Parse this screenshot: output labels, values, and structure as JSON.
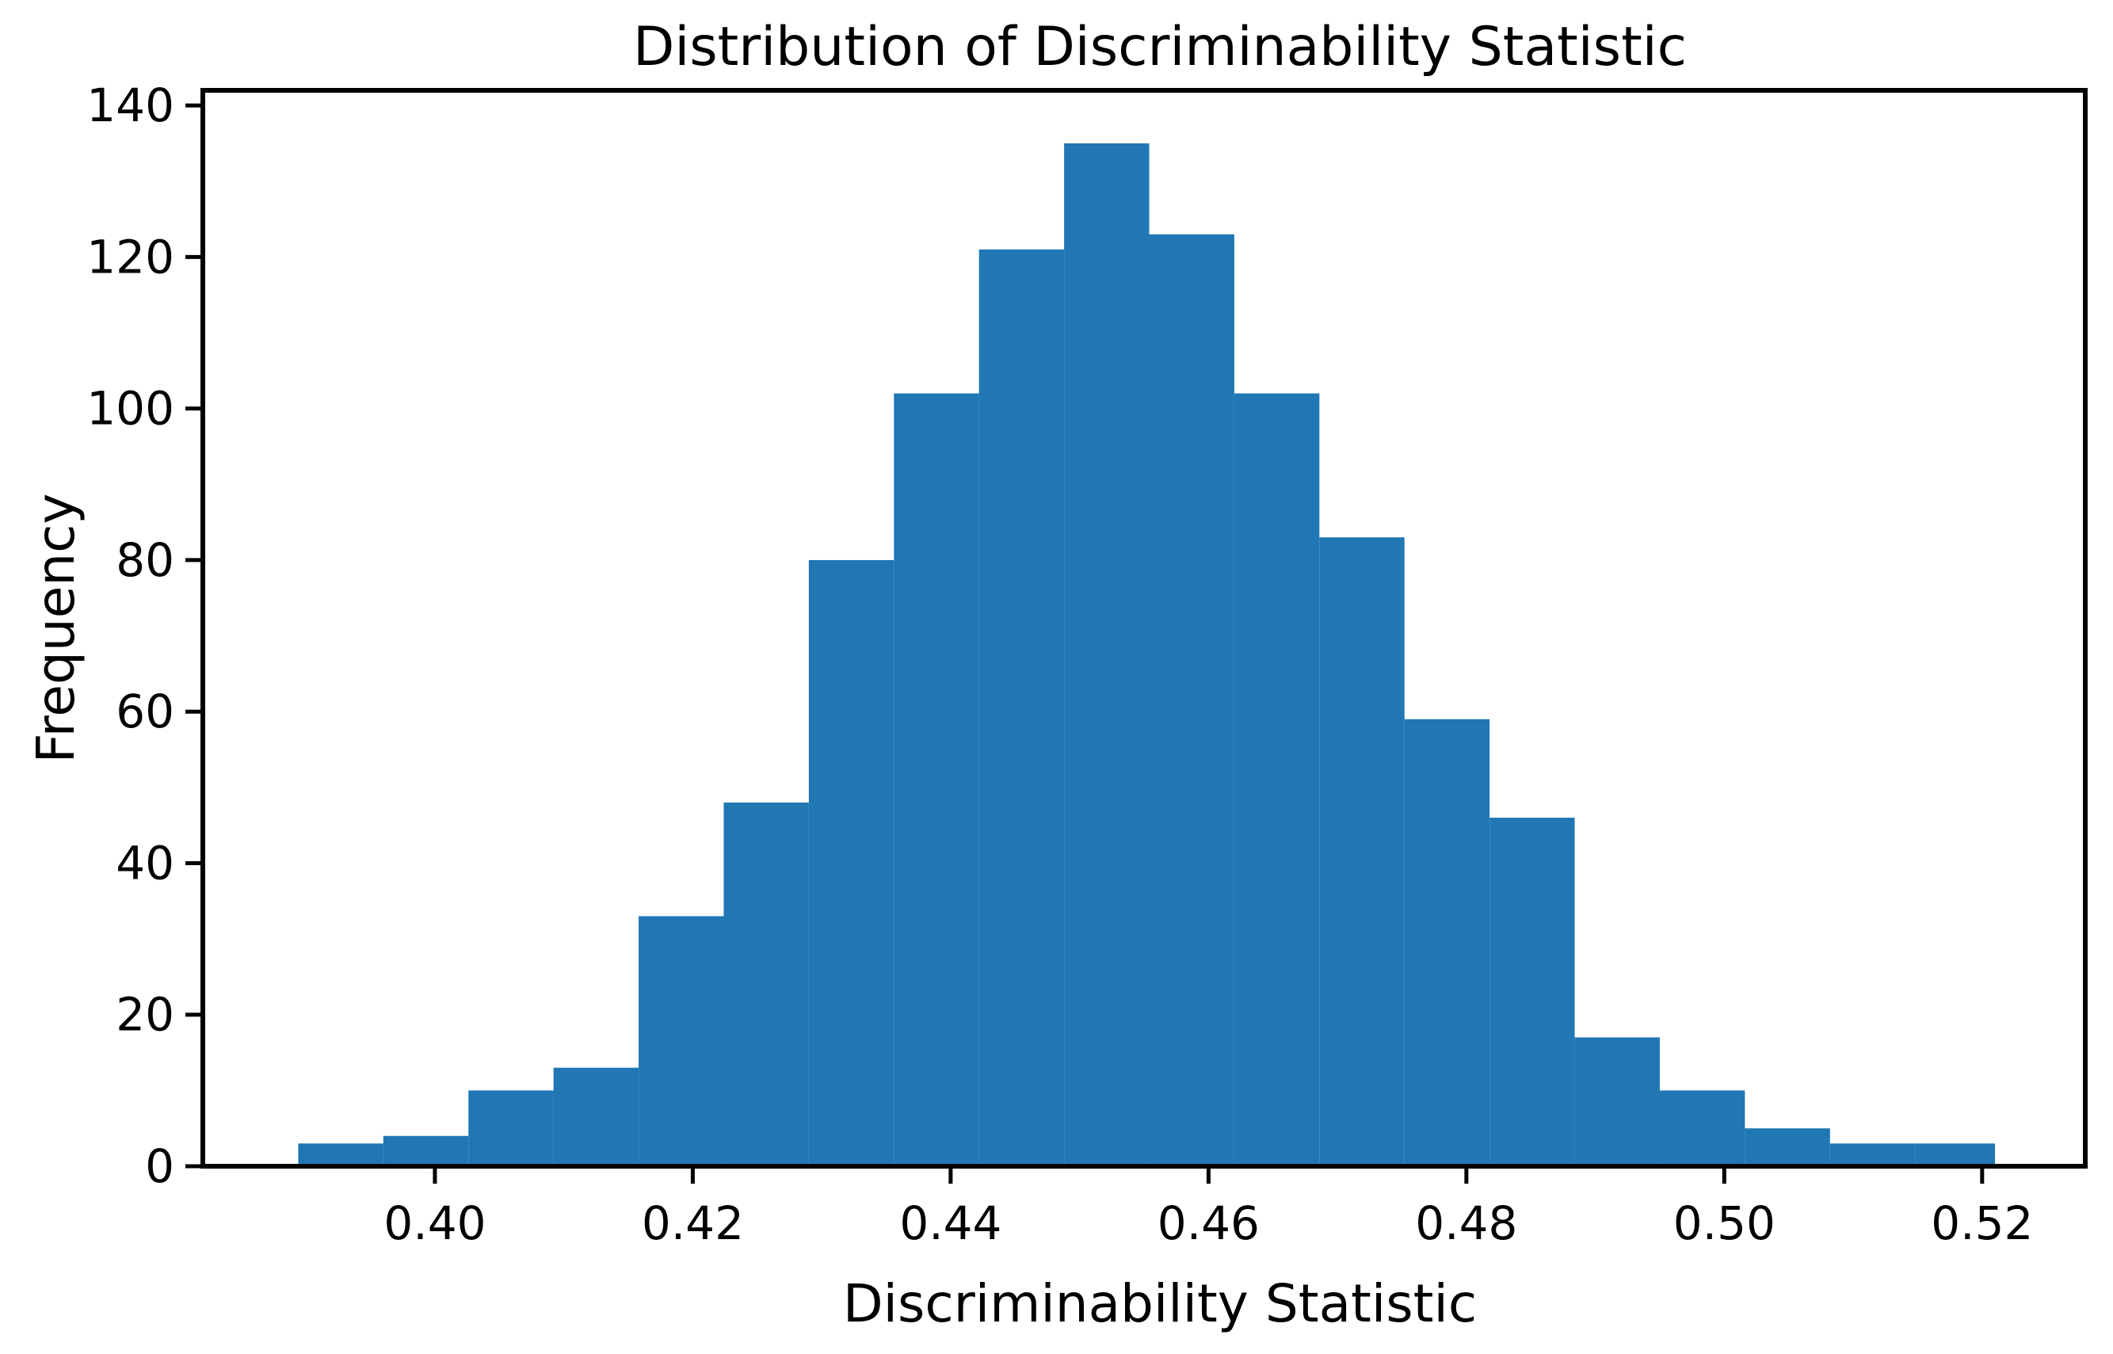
{
  "chart_data": {
    "type": "bar",
    "title": "Distribution of Discriminability Statistic",
    "xlabel": "Discriminability Statistic",
    "ylabel": "Frequency",
    "bin_edges": [
      0.3894,
      0.396,
      0.4026,
      0.4092,
      0.4158,
      0.4224,
      0.429,
      0.4356,
      0.4422,
      0.4488,
      0.4554,
      0.462,
      0.4686,
      0.4752,
      0.4818,
      0.4884,
      0.495,
      0.5016,
      0.5082,
      0.5148,
      0.521
    ],
    "values": [
      3,
      4,
      10,
      13,
      33,
      48,
      80,
      102,
      121,
      135,
      123,
      102,
      83,
      59,
      46,
      17,
      10,
      5,
      3,
      3
    ],
    "xlim": [
      0.382,
      0.528
    ],
    "ylim": [
      0,
      142
    ],
    "xticks": [
      0.4,
      0.42,
      0.44,
      0.46,
      0.48,
      0.5,
      0.52
    ],
    "xtick_labels": [
      "0.40",
      "0.42",
      "0.44",
      "0.46",
      "0.48",
      "0.50",
      "0.52"
    ],
    "yticks": [
      0,
      20,
      40,
      60,
      80,
      100,
      120,
      140
    ],
    "ytick_labels": [
      "0",
      "20",
      "40",
      "60",
      "80",
      "100",
      "120",
      "140"
    ],
    "bar_color": "#2077b4",
    "grid": false,
    "legend": "none"
  }
}
